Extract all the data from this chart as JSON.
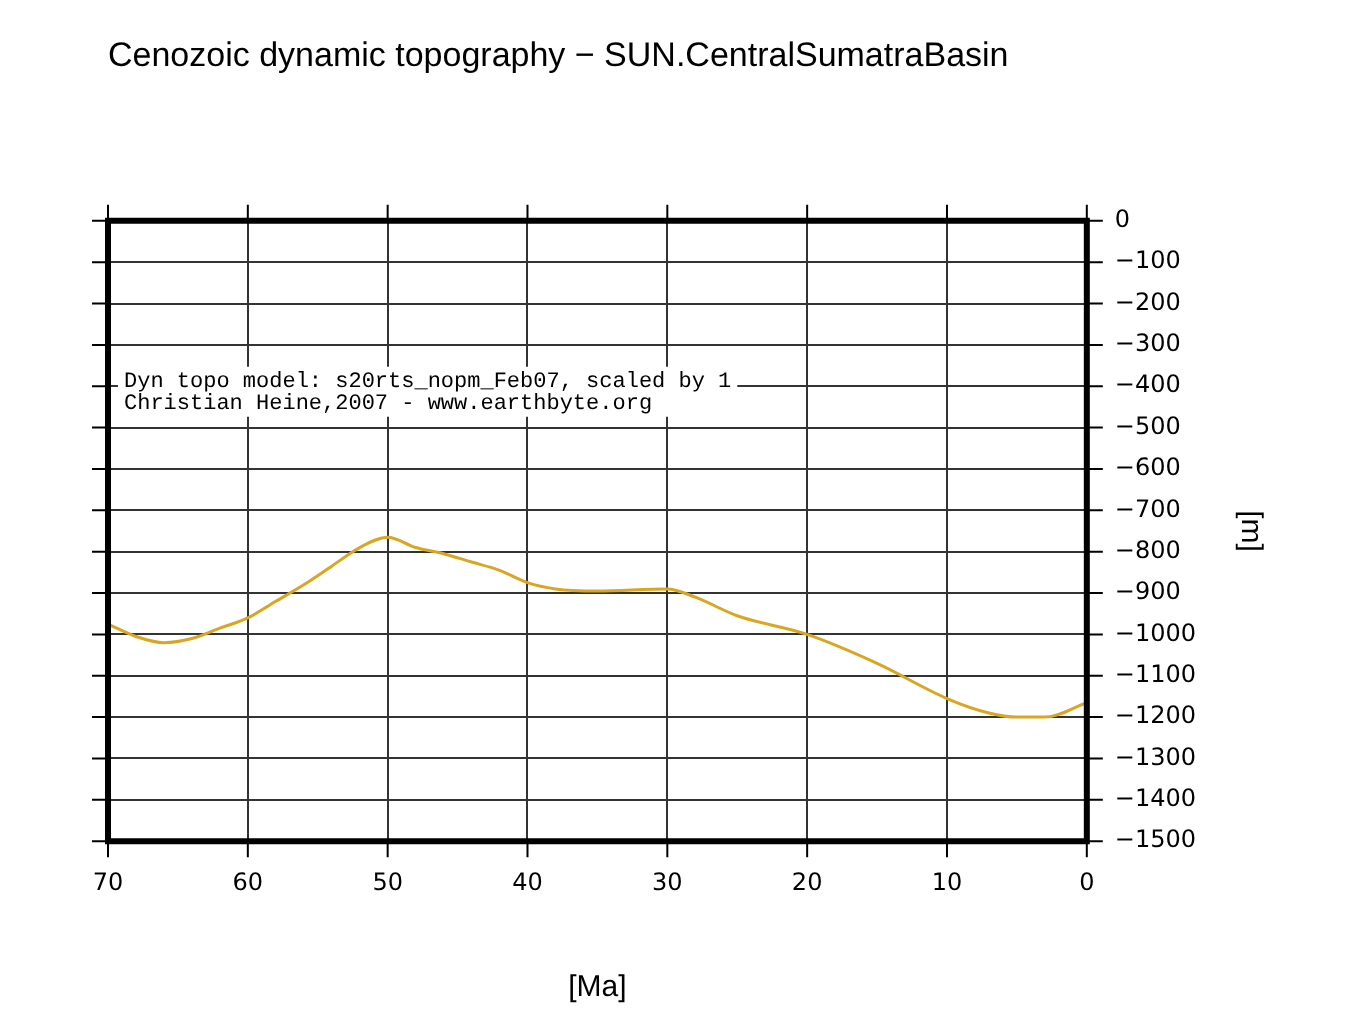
{
  "chart_data": {
    "type": "line",
    "title": "Cenozoic dynamic topography − SUN.CentralSumatraBasin",
    "xlabel": "[Ma]",
    "ylabel": "[m]",
    "x": [
      70,
      68,
      66,
      64,
      62,
      60,
      58,
      56,
      54,
      52,
      50,
      48,
      46,
      44,
      42,
      40,
      38,
      35,
      30,
      28,
      25,
      20,
      15,
      10,
      7,
      5,
      3,
      0
    ],
    "series": [
      {
        "color": "#daa520",
        "values": [
          -975,
          -1005,
          -1020,
          -1010,
          -985,
          -960,
          -920,
          -880,
          -835,
          -790,
          -765,
          -790,
          -805,
          -825,
          -845,
          -875,
          -890,
          -895,
          -890,
          -910,
          -955,
          -1000,
          -1070,
          -1155,
          -1190,
          -1200,
          -1200,
          -1165
        ]
      }
    ],
    "xlim": [
      70,
      0
    ],
    "xticks": [
      70,
      60,
      50,
      40,
      30,
      20,
      10,
      0
    ],
    "ylim": [
      -1500,
      0
    ],
    "yticks": [
      -1500,
      -1400,
      -1300,
      -1200,
      -1100,
      -1000,
      -900,
      -800,
      -700,
      -600,
      -500,
      -400,
      -300,
      -200,
      -100,
      0
    ],
    "grid": true,
    "annotations": [
      "Dyn topo model: s20rts_nopm_Feb07, scaled by 1",
      "Christian Heine,2007 - www.earthbyte.org"
    ]
  }
}
